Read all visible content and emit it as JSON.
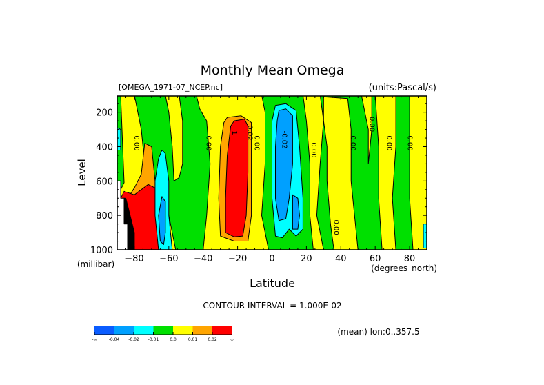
{
  "chart_data": {
    "type": "heatmap",
    "subtype": "filled-contour",
    "title": "Monthly Mean Omega",
    "file_label": "[OMEGA_1971-07_NCEP.nc]",
    "units_label": "(units:Pascal/s)",
    "xlabel": "Latitude",
    "x_units": "(degrees_north)",
    "ylabel": "Level",
    "y_units": "(millibar)",
    "xlim": [
      -90,
      90
    ],
    "ylim": [
      1000,
      100
    ],
    "x_ticks": [
      -80,
      -60,
      -40,
      -20,
      0,
      20,
      40,
      60,
      80
    ],
    "x_tick_labels": [
      "−80",
      "−60",
      "−40",
      "−20",
      "0",
      "20",
      "40",
      "60",
      "80"
    ],
    "y_ticks": [
      200,
      400,
      600,
      800,
      1000
    ],
    "y_tick_labels": [
      "200",
      "400",
      "600",
      "800",
      "1000"
    ],
    "contour_interval_text": "CONTOUR INTERVAL = 1.000E-02",
    "note": "(mean) lon:0..357.5",
    "contour_labels": [
      {
        "lat": -80,
        "lev": 380,
        "text": "0.00"
      },
      {
        "lat": -38,
        "lev": 380,
        "text": "0.00"
      },
      {
        "lat": -23,
        "lev": 320,
        "text": "1"
      },
      {
        "lat": -14,
        "lev": 320,
        "text": "0.02"
      },
      {
        "lat": -10,
        "lev": 380,
        "text": "0.00"
      },
      {
        "lat": 6,
        "lev": 360,
        "text": "-0.02"
      },
      {
        "lat": 23,
        "lev": 420,
        "text": "0.00"
      },
      {
        "lat": 36,
        "lev": 870,
        "text": "0.00"
      },
      {
        "lat": 46,
        "lev": 380,
        "text": "0.00"
      },
      {
        "lat": 57,
        "lev": 270,
        "text": "0.00"
      },
      {
        "lat": 67,
        "lev": 380,
        "text": "0.00"
      },
      {
        "lat": 79,
        "lev": 380,
        "text": "0.00"
      }
    ],
    "colorbar": {
      "levels": [
        "-∞",
        "-0.04",
        "-0.02",
        "-0.01",
        "0.0",
        "0.01",
        "0.02",
        "∞"
      ],
      "colors": [
        "#0a5cff",
        "#00a0ff",
        "#00ffff",
        "#00e000",
        "#ffff00",
        "#ffa500",
        "#ff0000"
      ]
    },
    "regions": [
      {
        "name": "yellow-band-sh-mid",
        "color": "#ffff00",
        "points": [
          [
            -88,
            100
          ],
          [
            -80,
            100
          ],
          [
            -76,
            300
          ],
          [
            -74,
            500
          ],
          [
            -72,
            620
          ],
          [
            -66,
            700
          ],
          [
            -60,
            800
          ],
          [
            -56,
            1000
          ],
          [
            -88,
            1000
          ],
          [
            -88,
            650
          ],
          [
            -86,
            610
          ]
        ]
      },
      {
        "name": "yellow-band-sh-60",
        "color": "#ffff00",
        "points": [
          [
            -62,
            100
          ],
          [
            -54,
            100
          ],
          [
            -52,
            250
          ],
          [
            -52,
            500
          ],
          [
            -54,
            580
          ],
          [
            -57,
            600
          ],
          [
            -58,
            400
          ],
          [
            -60,
            200
          ]
        ]
      },
      {
        "name": "yellow-band-subtropics",
        "color": "#ffff00",
        "points": [
          [
            -44,
            100
          ],
          [
            -6,
            100
          ],
          [
            -4,
            200
          ],
          [
            -4,
            500
          ],
          [
            -6,
            800
          ],
          [
            -2,
            1000
          ],
          [
            -40,
            1000
          ],
          [
            -38,
            800
          ],
          [
            -36,
            500
          ],
          [
            -38,
            250
          ],
          [
            -42,
            180
          ]
        ]
      },
      {
        "name": "orange-sh-subtropics",
        "color": "#ffa500",
        "points": [
          [
            -26,
            230
          ],
          [
            -18,
            220
          ],
          [
            -12,
            260
          ],
          [
            -12,
            500
          ],
          [
            -12,
            800
          ],
          [
            -14,
            950
          ],
          [
            -22,
            950
          ],
          [
            -30,
            920
          ],
          [
            -31,
            700
          ],
          [
            -30,
            400
          ],
          [
            -28,
            260
          ]
        ]
      },
      {
        "name": "red-sh-subtropics",
        "color": "#ff0000",
        "points": [
          [
            -22,
            250
          ],
          [
            -16,
            240
          ],
          [
            -14,
            280
          ],
          [
            -14,
            550
          ],
          [
            -15,
            800
          ],
          [
            -17,
            920
          ],
          [
            -22,
            925
          ],
          [
            -27,
            900
          ],
          [
            -27,
            700
          ],
          [
            -26,
            450
          ],
          [
            -24,
            280
          ]
        ]
      },
      {
        "name": "yellow-nh-20",
        "color": "#ffff00",
        "points": [
          [
            18,
            100
          ],
          [
            28,
            100
          ],
          [
            30,
            250
          ],
          [
            28,
            500
          ],
          [
            26,
            800
          ],
          [
            30,
            1000
          ],
          [
            24,
            1000
          ],
          [
            22,
            800
          ],
          [
            22,
            500
          ],
          [
            20,
            250
          ]
        ]
      },
      {
        "name": "yellow-nh-40",
        "color": "#ffff00",
        "points": [
          [
            30,
            110
          ],
          [
            44,
            120
          ],
          [
            46,
            300
          ],
          [
            46,
            600
          ],
          [
            48,
            800
          ],
          [
            50,
            1000
          ],
          [
            36,
            1000
          ],
          [
            34,
            850
          ],
          [
            32,
            600
          ],
          [
            32,
            400
          ],
          [
            30,
            250
          ]
        ]
      },
      {
        "name": "yellow-nh-55",
        "color": "#ffff00",
        "points": [
          [
            52,
            100
          ],
          [
            58,
            100
          ],
          [
            58,
            300
          ],
          [
            56,
            500
          ],
          [
            56,
            300
          ]
        ]
      },
      {
        "name": "yellow-nh-70",
        "color": "#ffff00",
        "points": [
          [
            60,
            100
          ],
          [
            72,
            100
          ],
          [
            72,
            400
          ],
          [
            70,
            700
          ],
          [
            72,
            1000
          ],
          [
            64,
            1000
          ],
          [
            62,
            700
          ],
          [
            62,
            400
          ]
        ]
      },
      {
        "name": "yellow-nh-85",
        "color": "#ffff00",
        "points": [
          [
            80,
            100
          ],
          [
            90,
            100
          ],
          [
            90,
            1000
          ],
          [
            82,
            1000
          ],
          [
            80,
            700
          ],
          [
            80,
            400
          ]
        ]
      },
      {
        "name": "orange-sh-70",
        "color": "#ffa500",
        "points": [
          [
            -74,
            380
          ],
          [
            -70,
            400
          ],
          [
            -68,
            600
          ],
          [
            -64,
            750
          ],
          [
            -60,
            850
          ],
          [
            -60,
            1000
          ],
          [
            -76,
            1000
          ],
          [
            -80,
            900
          ],
          [
            -84,
            700
          ],
          [
            -80,
            640
          ],
          [
            -76,
            560
          ]
        ]
      },
      {
        "name": "red-sh-70",
        "color": "#ff0000",
        "points": [
          [
            -72,
            620
          ],
          [
            -68,
            640
          ],
          [
            -64,
            720
          ],
          [
            -62,
            900
          ],
          [
            -62,
            1000
          ],
          [
            -80,
            1000
          ],
          [
            -84,
            850
          ],
          [
            -88,
            700
          ],
          [
            -86,
            660
          ],
          [
            -80,
            680
          ]
        ]
      },
      {
        "name": "cyan-sh-62",
        "color": "#00ffff",
        "points": [
          [
            -64,
            420
          ],
          [
            -62,
            440
          ],
          [
            -60,
            600
          ],
          [
            -60,
            800
          ],
          [
            -58,
            1000
          ],
          [
            -66,
            1000
          ],
          [
            -68,
            800
          ],
          [
            -68,
            600
          ],
          [
            -66,
            470
          ]
        ]
      },
      {
        "name": "blue-sh-62",
        "color": "#00a0ff",
        "points": [
          [
            -64,
            690
          ],
          [
            -62,
            720
          ],
          [
            -62,
            900
          ],
          [
            -63,
            970
          ],
          [
            -65,
            950
          ],
          [
            -66,
            800
          ]
        ]
      },
      {
        "name": "cyan-eq",
        "color": "#00ffff",
        "points": [
          [
            2,
            160
          ],
          [
            8,
            150
          ],
          [
            14,
            190
          ],
          [
            16,
            400
          ],
          [
            18,
            700
          ],
          [
            18,
            880
          ],
          [
            14,
            920
          ],
          [
            10,
            880
          ],
          [
            6,
            930
          ],
          [
            2,
            920
          ],
          [
            0,
            700
          ],
          [
            0,
            400
          ],
          [
            0,
            250
          ]
        ]
      },
      {
        "name": "blue-eq",
        "color": "#00a0ff",
        "points": [
          [
            4,
            190
          ],
          [
            8,
            180
          ],
          [
            12,
            220
          ],
          [
            12,
            500
          ],
          [
            10,
            700
          ],
          [
            8,
            820
          ],
          [
            4,
            830
          ],
          [
            2,
            700
          ],
          [
            2,
            400
          ],
          [
            3,
            250
          ]
        ]
      },
      {
        "name": "blue-eq-lower",
        "color": "#00a0ff",
        "points": [
          [
            12,
            680
          ],
          [
            15,
            700
          ],
          [
            16,
            800
          ],
          [
            15,
            880
          ],
          [
            12,
            880
          ],
          [
            12,
            780
          ]
        ]
      },
      {
        "name": "cyan-sh-88",
        "color": "#00ffff",
        "points": [
          [
            -90,
            290
          ],
          [
            -88,
            300
          ],
          [
            -88,
            420
          ],
          [
            -90,
            420
          ]
        ]
      },
      {
        "name": "cyan-nh-90",
        "color": "#00ffff",
        "points": [
          [
            88,
            850
          ],
          [
            90,
            850
          ],
          [
            90,
            990
          ],
          [
            88,
            990
          ]
        ]
      },
      {
        "name": "white-missing",
        "color": "#ffffff",
        "points": [
          [
            -90,
            600
          ],
          [
            -88,
            600
          ],
          [
            -88,
            700
          ],
          [
            -86,
            700
          ],
          [
            -86,
            850
          ],
          [
            -84,
            850
          ],
          [
            -84,
            1000
          ],
          [
            -90,
            1000
          ]
        ]
      },
      {
        "name": "black-missing",
        "color": "#000000",
        "points": [
          [
            -86,
            700
          ],
          [
            -85,
            700
          ],
          [
            -82,
            820
          ],
          [
            -80,
            900
          ],
          [
            -80,
            1000
          ],
          [
            -84,
            1000
          ],
          [
            -84,
            850
          ],
          [
            -86,
            850
          ]
        ]
      }
    ]
  }
}
